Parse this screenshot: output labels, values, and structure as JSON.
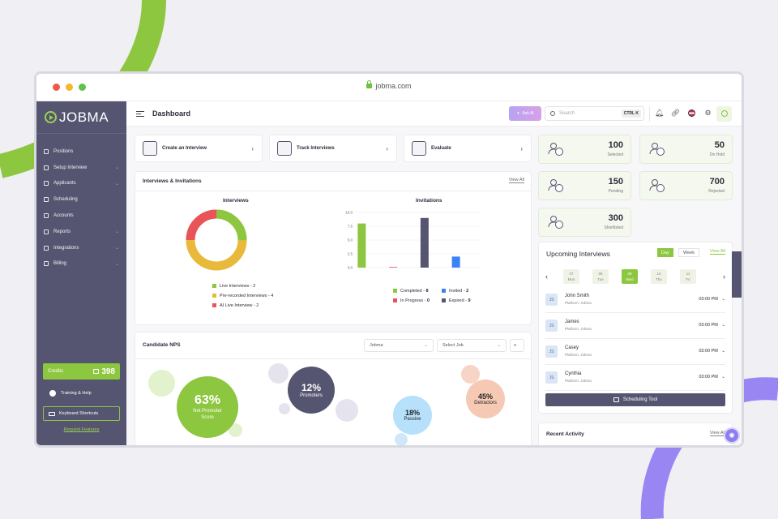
{
  "browser": {
    "url": "jobma.com"
  },
  "sidebar": {
    "brand": "JOBMA",
    "items": [
      {
        "label": "Positions",
        "chevron": false
      },
      {
        "label": "Setup Interview",
        "chevron": true
      },
      {
        "label": "Applicants",
        "chevron": true
      },
      {
        "label": "Scheduling",
        "chevron": false
      },
      {
        "label": "Accounts",
        "chevron": false
      },
      {
        "label": "Reports",
        "chevron": true
      },
      {
        "label": "Integrations",
        "chevron": true
      },
      {
        "label": "Billing",
        "chevron": true
      }
    ],
    "credits_label": "Credits",
    "credits_value": "398",
    "training": "Training & Help",
    "keyboard": "Keyboard Shortcuts",
    "request": "Request Features"
  },
  "topbar": {
    "title": "Dashboard",
    "ask_ai": "Ask AI",
    "search_placeholder": "Search",
    "shortcut": "CTRL K"
  },
  "quick_actions": [
    "Create an Interview",
    "Track Interviews",
    "Evaluate"
  ],
  "interviews_section": {
    "title": "Interviews & Invitations",
    "view_all": "View All"
  },
  "interviews_chart": {
    "title": "Interviews",
    "legend": [
      {
        "label": "Live Interviews",
        "value": "2",
        "color": "#8dc63f"
      },
      {
        "label": "Pre-recorded Interviews",
        "value": "4",
        "color": "#e8b93a"
      },
      {
        "label": "AI Live Interview",
        "value": "2",
        "color": "#e8545a"
      }
    ]
  },
  "chart_data": {
    "type": "bar",
    "title": "Invitations",
    "categories": [
      "Completed",
      "In Progress",
      "Expired",
      "Invited"
    ],
    "values": [
      8,
      0,
      9,
      2
    ],
    "colors": [
      "#8dc63f",
      "#e8545a",
      "#565571",
      "#3b82f6"
    ],
    "ylim": [
      0,
      10
    ],
    "yticks": [
      "10.0",
      "7.5",
      "5.0",
      "2.5",
      "0.0"
    ],
    "legend": [
      {
        "label": "Completed",
        "value": "8",
        "color": "#8dc63f"
      },
      {
        "label": "Invited",
        "value": "2",
        "color": "#3b82f6"
      },
      {
        "label": "In Progress",
        "value": "0",
        "color": "#e8545a"
      },
      {
        "label": "Expired",
        "value": "9",
        "color": "#565571"
      }
    ]
  },
  "nps": {
    "title": "Candidate NPS",
    "company_select": "Jobma",
    "job_select": "Select Job",
    "score": {
      "value": "63%",
      "label": "Net Promoter Score"
    },
    "promoters": {
      "value": "12%",
      "label": "Promoters"
    },
    "passive": {
      "value": "18%",
      "label": "Passive"
    },
    "detractors": {
      "value": "45%",
      "label": "Detractors"
    }
  },
  "stats": [
    {
      "value": "100",
      "label": "Selected"
    },
    {
      "value": "50",
      "label": "On Hold"
    },
    {
      "value": "150",
      "label": "Pending"
    },
    {
      "value": "700",
      "label": "Rejected"
    },
    {
      "value": "300",
      "label": "Shortlisted"
    }
  ],
  "upcoming": {
    "title": "Upcoming Interviews",
    "tabs": [
      "Day",
      "Week"
    ],
    "view_all": "View All",
    "dates": [
      {
        "num": "07",
        "day": "Mon"
      },
      {
        "num": "08",
        "day": "Tue"
      },
      {
        "num": "09",
        "day": "Wed"
      },
      {
        "num": "10",
        "day": "Thu"
      },
      {
        "num": "11",
        "day": "Fri"
      }
    ],
    "rows": [
      {
        "initials": "JS",
        "name": "John Smith",
        "platform": "Platform: Jobma",
        "time": "03:00 PM"
      },
      {
        "initials": "JS",
        "name": "James",
        "platform": "Platform: Jobma",
        "time": "03:00 PM"
      },
      {
        "initials": "JS",
        "name": "Casey",
        "platform": "Platform: Jobma",
        "time": "03:00 PM"
      },
      {
        "initials": "JS",
        "name": "Cynthia",
        "platform": "Platform: Jobma",
        "time": "03:00 PM"
      }
    ],
    "tool": "Scheduling Tool"
  },
  "recent": {
    "title": "Recent Activity",
    "view_all": "View All"
  }
}
